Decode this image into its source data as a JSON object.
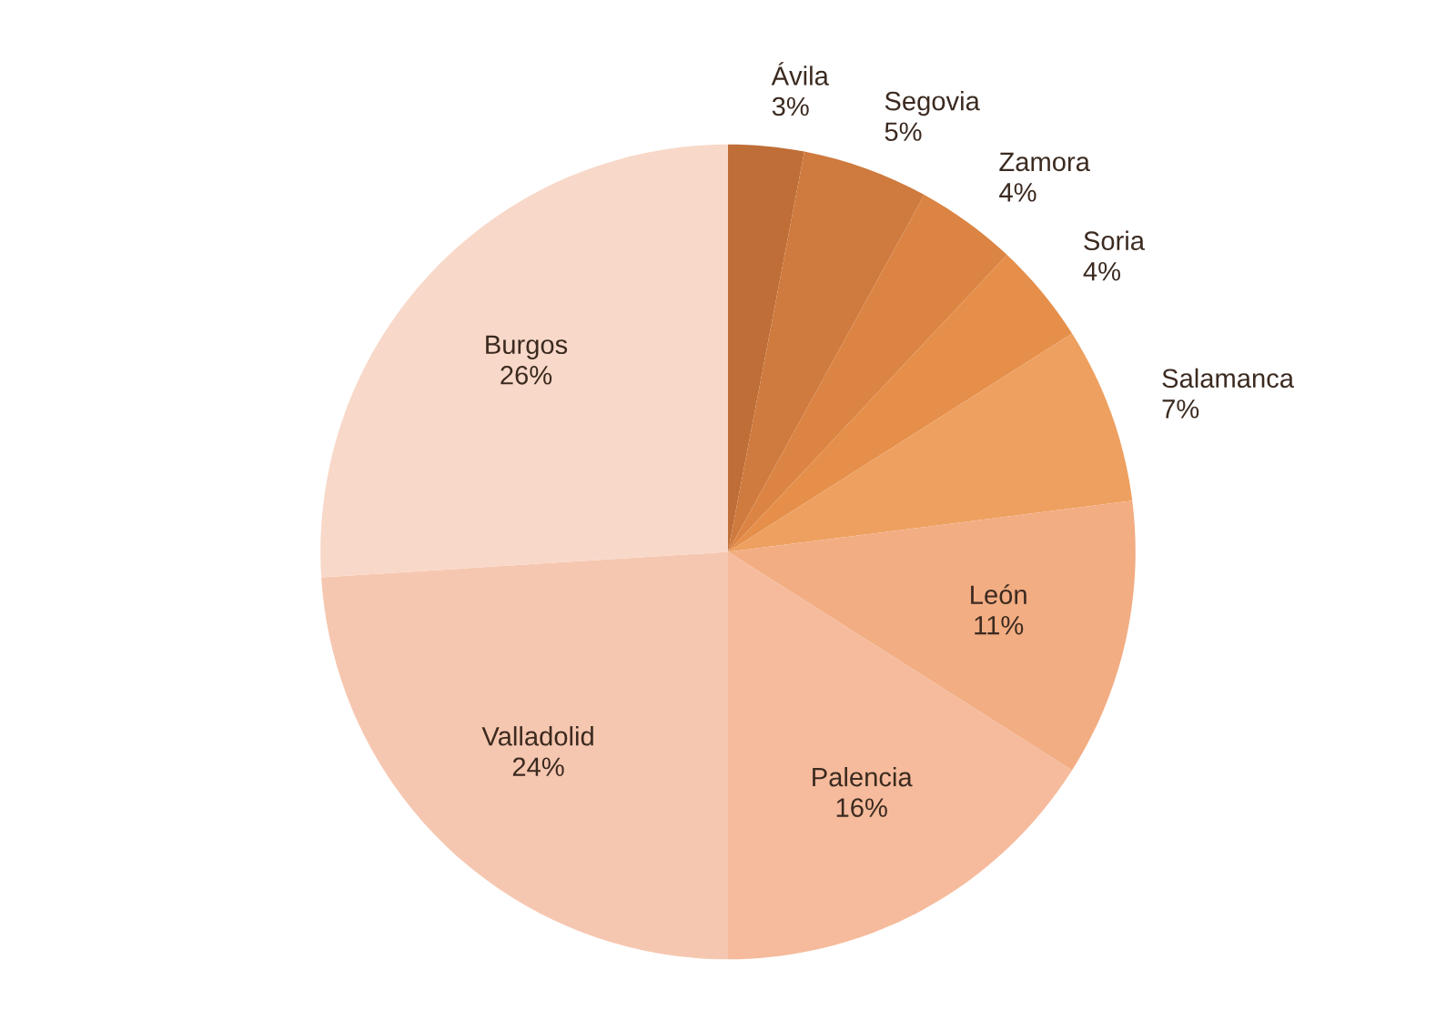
{
  "chart_data": {
    "type": "pie",
    "categories": [
      "Ávila",
      "Segovia",
      "Zamora",
      "Soria",
      "Salamanca",
      "León",
      "Palencia",
      "Valladolid",
      "Burgos"
    ],
    "values": [
      3,
      5,
      4,
      4,
      7,
      11,
      16,
      24,
      26
    ],
    "value_labels": [
      "3%",
      "5%",
      "4%",
      "4%",
      "7%",
      "11%",
      "16%",
      "24%",
      "26%"
    ],
    "colors": [
      "#bf6e37",
      "#cf7a3e",
      "#db8443",
      "#e58f4a",
      "#eea060",
      "#f2ad83",
      "#f5bb9c",
      "#f6c7b0",
      "#f8d8c8"
    ],
    "legend": false
  }
}
